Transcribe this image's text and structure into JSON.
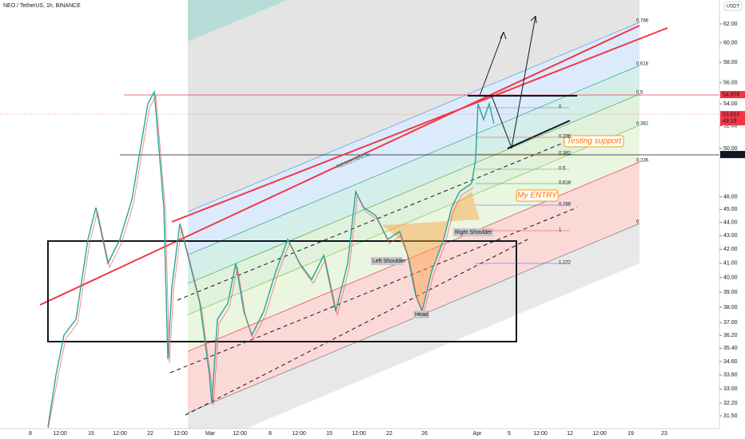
{
  "header": {
    "symbol": "NEO / TetherUS, 1h, BINANCE",
    "currency": "USDT"
  },
  "price_axis": {
    "log": true,
    "ylim": [
      31.5,
      62
    ],
    "ticks": [
      {
        "value": 31.5,
        "label": "31.50"
      },
      {
        "value": 32.2,
        "label": "32.20"
      },
      {
        "value": 33,
        "label": "33.00"
      },
      {
        "value": 33.8,
        "label": "33.80"
      },
      {
        "value": 34.6,
        "label": "34.60"
      },
      {
        "value": 35.4,
        "label": "35.40"
      },
      {
        "value": 36.2,
        "label": "36.20"
      },
      {
        "value": 37,
        "label": "37.00"
      },
      {
        "value": 38,
        "label": "38.00"
      },
      {
        "value": 39,
        "label": "39.00"
      },
      {
        "value": 40,
        "label": "40.00"
      },
      {
        "value": 41,
        "label": "41.00"
      },
      {
        "value": 42,
        "label": "42.00"
      },
      {
        "value": 43,
        "label": "43.00"
      },
      {
        "value": 44,
        "label": "44.00"
      },
      {
        "value": 45,
        "label": "45.00"
      },
      {
        "value": 46,
        "label": "46.00"
      },
      {
        "value": 50,
        "label": "50.00"
      },
      {
        "value": 52,
        "label": "52.00"
      },
      {
        "value": 54,
        "label": "54.00"
      },
      {
        "value": 56,
        "label": "56.00"
      },
      {
        "value": 58,
        "label": "58.00"
      },
      {
        "value": 60,
        "label": "60.00"
      },
      {
        "value": 62,
        "label": "62.00"
      }
    ],
    "tags": [
      {
        "value": 54.876,
        "label": "54.876",
        "color": "#f23645"
      },
      {
        "value": 53.01,
        "label": "53.010",
        "sub": "49:18",
        "color": "#f23645"
      },
      {
        "value": 49.478,
        "label": "49.478",
        "color": "#131722"
      }
    ]
  },
  "time_axis": {
    "labels": [
      "8",
      "12:00",
      "15",
      "12:00",
      "22",
      "12:00",
      "Mar",
      "12:00",
      "8",
      "12:00",
      "15",
      "12:00",
      "22",
      "26",
      "Apr",
      "5",
      "12:00",
      "12",
      "12:00",
      "19",
      "23"
    ]
  },
  "annotations": {
    "resistance": "RESISTANCE",
    "testing_support": "Testing support",
    "my_entry": "My ENTRY",
    "left_shoulder": "Left Shoulder",
    "head": "Head",
    "right_shoulder": "Right Shoulder"
  },
  "fib_channel_labels": [
    "0.786",
    "0.618",
    "0.5",
    "0.382",
    "0.236",
    "0"
  ],
  "fib_retracement_labels": [
    "0",
    "0.236",
    "0.382",
    "0.5",
    "0.618",
    "0.786",
    "1",
    "1.272"
  ]
}
